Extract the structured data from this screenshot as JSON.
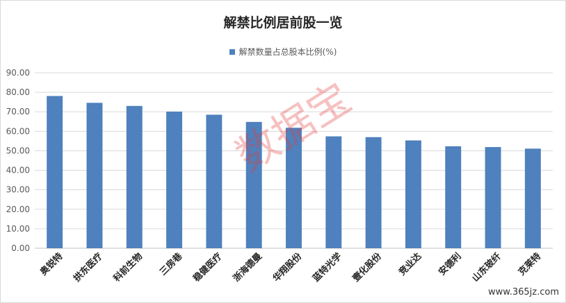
{
  "chart_data": {
    "type": "bar",
    "title": "解禁比例居前股一览",
    "series": [
      {
        "name": "解禁数量占总股本比例(%)",
        "values": [
          78.1,
          74.6,
          73.0,
          70.1,
          68.5,
          64.8,
          61.8,
          57.4,
          57.0,
          55.3,
          52.3,
          51.9,
          51.1
        ]
      }
    ],
    "categories": [
      "奥锐特",
      "拱东医疗",
      "科前生物",
      "三房巷",
      "稳健医疗",
      "浙海德曼",
      "华翔股份",
      "蓝特光学",
      "壹化股份",
      "竞业达",
      "安德利",
      "山东玻纤",
      "克莱特"
    ],
    "ylim": [
      0,
      90
    ],
    "yticks": [
      "0.00",
      "10.00",
      "20.00",
      "30.00",
      "40.00",
      "50.00",
      "60.00",
      "70.00",
      "80.00",
      "90.00"
    ],
    "grid": true,
    "legend_position": "top",
    "bar_color": "#4e81bd"
  },
  "watermark": "数据宝",
  "site_mark": "www.365jz.com"
}
